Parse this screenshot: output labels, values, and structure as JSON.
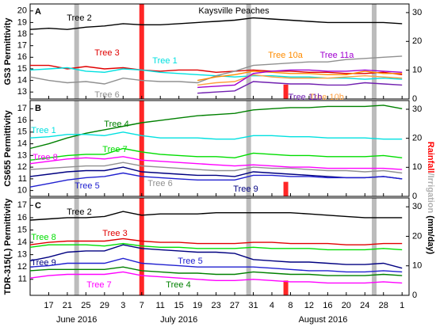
{
  "chart_data": [
    {
      "type": "line",
      "label": "A",
      "title": "Kaysville Peaches",
      "y_label": "GS3 Permittivity",
      "y2_label": [
        "Rainfall",
        "/Irrigation",
        " (mm/day)"
      ],
      "ylim": [
        12.4,
        20.6
      ],
      "yticks": [
        13,
        14,
        15,
        16,
        17,
        18,
        19,
        20
      ],
      "y2lim": [
        0,
        33
      ],
      "y2ticks": [
        0,
        10,
        20,
        30
      ],
      "xlim": [
        165,
        246.5
      ],
      "rainfall_x": [
        189,
        220
      ],
      "rainfall": [
        33,
        5
      ],
      "rainfall_color": "#ff0000",
      "irrigation_x": [
        175,
        212,
        239
      ],
      "irrigation": [
        33,
        33,
        33
      ],
      "irrigation_color": "#b0b0b0",
      "x": [
        165,
        169,
        173,
        177,
        181,
        185,
        189,
        193,
        197,
        201,
        205,
        209,
        213,
        217,
        221,
        225,
        229,
        233,
        237,
        241,
        245
      ],
      "series": [
        {
          "name": "Tree 2",
          "color": "#000000",
          "values": [
            18.4,
            18.5,
            18.4,
            18.6,
            18.7,
            18.9,
            18.8,
            18.8,
            18.9,
            19.0,
            19.1,
            19.2,
            19.4,
            19.3,
            19.2,
            19.1,
            19.0,
            19.0,
            19.0,
            19.0,
            18.9
          ]
        },
        {
          "name": "Tree 3",
          "color": "#e00000",
          "values": [
            15.3,
            15.3,
            15.0,
            15.2,
            15.0,
            15.1,
            14.9,
            14.8,
            14.9,
            14.9,
            14.7,
            14.8,
            14.9,
            14.8,
            14.8,
            14.7,
            14.7,
            14.6,
            14.6,
            14.7,
            14.5
          ]
        },
        {
          "name": "Tree 1",
          "color": "#00e0e0",
          "values": [
            14.9,
            15.0,
            15.1,
            14.8,
            14.7,
            15.0,
            14.9,
            14.7,
            14.6,
            14.5,
            14.4,
            14.3,
            14.4,
            14.4,
            14.3,
            14.3,
            14.2,
            14.2,
            14.1,
            14.2,
            14.1
          ]
        },
        {
          "name": "Tree 6",
          "color": "#909090",
          "values": [
            14.3,
            14.0,
            13.8,
            13.9,
            13.7,
            14.2,
            14.0,
            13.9,
            13.9,
            13.8,
            14.4,
            14.8,
            15.3,
            15.4,
            15.5,
            15.6,
            15.6,
            15.8,
            15.9,
            16.0,
            16.1
          ]
        },
        {
          "name": "Tree 10a",
          "color": "#ff8c00",
          "values": [
            null,
            null,
            null,
            null,
            null,
            null,
            null,
            null,
            null,
            14.0,
            14.3,
            14.5,
            14.8,
            14.7,
            14.6,
            14.6,
            14.5,
            14.5,
            14.8,
            14.6,
            14.6
          ]
        },
        {
          "name": "Tree 10b",
          "color": "#ffa040",
          "values": [
            null,
            null,
            null,
            null,
            null,
            null,
            null,
            null,
            null,
            13.6,
            13.8,
            13.9,
            14.5,
            14.3,
            14.2,
            14.2,
            14.2,
            14.3,
            14.4,
            14.3,
            14.2
          ]
        },
        {
          "name": "Tree 11a",
          "color": "#a000d0",
          "values": [
            null,
            null,
            null,
            null,
            null,
            null,
            null,
            null,
            null,
            13.4,
            13.5,
            13.6,
            14.6,
            14.8,
            14.9,
            14.9,
            14.8,
            14.8,
            14.9,
            14.8,
            14.7
          ]
        },
        {
          "name": "Tree 11b",
          "color": "#7020b0",
          "values": [
            null,
            null,
            null,
            null,
            null,
            null,
            null,
            null,
            null,
            12.9,
            13.0,
            13.1,
            13.9,
            13.8,
            13.7,
            13.7,
            13.6,
            13.6,
            13.8,
            13.7,
            13.6
          ]
        }
      ]
    },
    {
      "type": "line",
      "label": "B",
      "y_label": "CS655 Permittivity",
      "ylim": [
        9.5,
        17.7
      ],
      "yticks": [
        10,
        11,
        12,
        13,
        14,
        15,
        16,
        17
      ],
      "y2lim": [
        0,
        33
      ],
      "y2ticks": [
        0,
        10,
        20,
        30
      ],
      "xlim": [
        165,
        246.5
      ],
      "x": [
        165,
        169,
        173,
        177,
        181,
        185,
        189,
        193,
        197,
        201,
        205,
        209,
        213,
        217,
        221,
        225,
        229,
        233,
        237,
        241,
        245
      ],
      "series": [
        {
          "name": "Tree 4",
          "color": "#008000",
          "values": [
            13.6,
            14.0,
            14.5,
            14.9,
            15.2,
            15.5,
            15.8,
            16.0,
            16.2,
            16.4,
            16.5,
            16.6,
            16.9,
            17.0,
            17.1,
            17.1,
            17.2,
            17.2,
            17.2,
            17.3,
            17.0
          ]
        },
        {
          "name": "Tree 1",
          "color": "#00e0e0",
          "values": [
            14.5,
            14.6,
            14.8,
            14.8,
            14.7,
            15.0,
            14.7,
            14.5,
            14.5,
            14.5,
            14.4,
            14.4,
            14.7,
            14.7,
            14.6,
            14.6,
            14.5,
            14.5,
            14.5,
            14.4,
            14.4
          ]
        },
        {
          "name": "Tree 7",
          "color": "#00dd00",
          "values": [
            12.6,
            12.8,
            13.0,
            13.1,
            13.1,
            13.6,
            13.3,
            13.1,
            13.0,
            12.9,
            12.9,
            12.8,
            13.2,
            13.1,
            13.0,
            13.0,
            12.9,
            12.9,
            12.9,
            13.0,
            12.8
          ]
        },
        {
          "name": "Tree 8",
          "color": "#ff00ff",
          "values": [
            12.3,
            12.5,
            12.7,
            12.8,
            12.7,
            12.9,
            12.6,
            12.5,
            12.4,
            12.3,
            12.2,
            12.1,
            12.2,
            12.1,
            12.0,
            12.0,
            11.9,
            11.9,
            11.9,
            11.9,
            11.8
          ]
        },
        {
          "name": "Tree 6",
          "color": "#909090",
          "values": [
            11.8,
            11.9,
            12.0,
            12.1,
            12.1,
            12.4,
            12.1,
            12.0,
            11.9,
            11.8,
            11.7,
            11.7,
            12.0,
            11.9,
            11.9,
            11.8,
            11.7,
            11.7,
            11.6,
            11.7,
            11.5
          ]
        },
        {
          "name": "Tree 9",
          "color": "#000080",
          "values": [
            11.2,
            11.4,
            11.6,
            11.7,
            11.7,
            12.0,
            11.6,
            11.5,
            11.4,
            11.3,
            11.3,
            11.2,
            11.6,
            11.5,
            11.4,
            11.3,
            11.2,
            11.1,
            11.1,
            11.2,
            11.0
          ]
        },
        {
          "name": "Tree 5",
          "color": "#2020d0",
          "values": [
            10.3,
            10.6,
            10.9,
            11.1,
            11.2,
            11.5,
            11.2,
            11.1,
            11.0,
            10.9,
            10.9,
            10.9,
            11.3,
            11.3,
            11.2,
            11.2,
            11.1,
            11.1,
            11.1,
            11.2,
            11.0
          ]
        }
      ]
    },
    {
      "type": "line",
      "label": "C",
      "y_label": "TDR-315(L) Permittivity",
      "ylim": [
        9.7,
        17.6
      ],
      "yticks": [
        11,
        12,
        13,
        14,
        15,
        16,
        17
      ],
      "y2lim": [
        0,
        33
      ],
      "y2ticks": [
        0,
        10,
        20,
        30
      ],
      "xlim": [
        165,
        246.5
      ],
      "xticks": [
        {
          "value": 169,
          "label": "17"
        },
        {
          "value": 173,
          "label": "21"
        },
        {
          "value": 177,
          "label": "25"
        },
        {
          "value": 181,
          "label": "29"
        },
        {
          "value": 185,
          "label": "3"
        },
        {
          "value": 189,
          "label": "7"
        },
        {
          "value": 193,
          "label": "11"
        },
        {
          "value": 197,
          "label": "15"
        },
        {
          "value": 201,
          "label": "19"
        },
        {
          "value": 205,
          "label": "23"
        },
        {
          "value": 209,
          "label": "27"
        },
        {
          "value": 213,
          "label": "31"
        },
        {
          "value": 217,
          "label": "4"
        },
        {
          "value": 221,
          "label": "8"
        },
        {
          "value": 225,
          "label": "12"
        },
        {
          "value": 229,
          "label": "16"
        },
        {
          "value": 233,
          "label": "20"
        },
        {
          "value": 237,
          "label": "24"
        },
        {
          "value": 241,
          "label": "28"
        },
        {
          "value": 245,
          "label": "1"
        }
      ],
      "month_labels": [
        {
          "value": 175,
          "label": "June 2016"
        },
        {
          "value": 197,
          "label": "July 2016"
        },
        {
          "value": 228,
          "label": "August 2016"
        }
      ],
      "x": [
        165,
        169,
        173,
        177,
        181,
        185,
        189,
        193,
        197,
        201,
        205,
        209,
        213,
        217,
        221,
        225,
        229,
        233,
        237,
        241,
        245
      ],
      "series": [
        {
          "name": "Tree 2",
          "color": "#000000",
          "values": [
            15.8,
            15.9,
            16.0,
            16.0,
            16.1,
            16.5,
            16.2,
            16.3,
            16.3,
            16.3,
            16.4,
            16.4,
            16.4,
            16.4,
            16.4,
            16.3,
            16.2,
            16.1,
            16.0,
            16.0,
            16.0
          ]
        },
        {
          "name": "Tree 3",
          "color": "#e00000",
          "values": [
            13.8,
            14.0,
            14.1,
            14.1,
            14.1,
            14.3,
            14.1,
            14.0,
            14.0,
            13.9,
            13.9,
            13.9,
            14.0,
            14.0,
            13.9,
            13.9,
            13.9,
            13.8,
            13.8,
            13.9,
            13.9
          ]
        },
        {
          "name": "Tree 8",
          "color": "#00dd00",
          "values": [
            13.6,
            13.8,
            13.8,
            13.8,
            13.7,
            13.9,
            13.7,
            13.6,
            13.6,
            13.5,
            13.5,
            13.5,
            13.6,
            13.5,
            13.5,
            13.5,
            13.4,
            13.4,
            13.4,
            13.5,
            13.4
          ]
        },
        {
          "name": "Tree 9",
          "color": "#000080",
          "values": [
            12.5,
            12.8,
            13.2,
            13.3,
            13.3,
            13.8,
            13.5,
            13.4,
            13.3,
            13.2,
            13.2,
            13.1,
            12.6,
            12.5,
            12.4,
            12.4,
            12.3,
            12.2,
            12.2,
            12.3,
            11.9
          ]
        },
        {
          "name": "Tree 5",
          "color": "#2020d0",
          "values": [
            12.0,
            12.1,
            12.3,
            12.3,
            12.3,
            12.7,
            12.3,
            12.2,
            12.1,
            12.0,
            12.0,
            12.0,
            12.0,
            11.9,
            11.8,
            11.7,
            11.7,
            11.6,
            11.6,
            11.7,
            11.6
          ]
        },
        {
          "name": "Tree 7",
          "color": "#ff00ff",
          "values": [
            11.1,
            11.3,
            11.4,
            11.4,
            11.4,
            11.6,
            11.3,
            11.2,
            11.1,
            11.0,
            10.9,
            10.9,
            11.0,
            10.9,
            10.8,
            10.8,
            10.7,
            10.7,
            10.7,
            10.8,
            10.7
          ]
        },
        {
          "name": "Tree 4",
          "color": "#008000",
          "values": [
            11.7,
            11.8,
            11.8,
            11.8,
            11.8,
            12.0,
            11.7,
            11.6,
            11.5,
            11.5,
            11.4,
            11.4,
            11.6,
            11.5,
            11.4,
            11.4,
            11.3,
            11.3,
            11.3,
            11.4,
            11.3
          ]
        }
      ]
    }
  ]
}
